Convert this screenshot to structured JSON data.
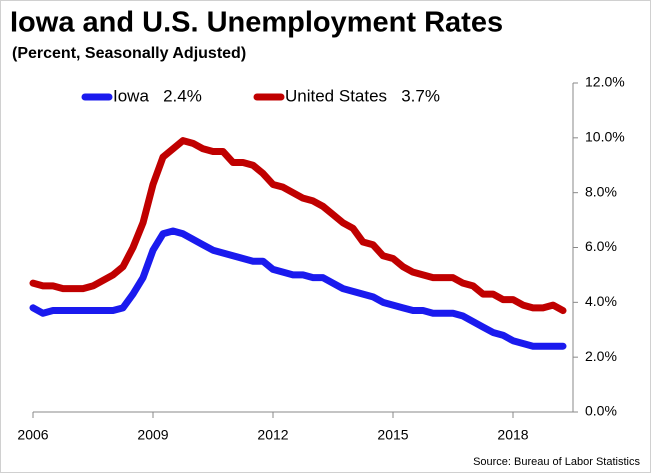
{
  "chart_data": {
    "type": "line",
    "title": "Iowa and U.S. Unemployment Rates",
    "subtitle": "(Percent, Seasonally Adjusted)",
    "source": "Source: Bureau of Labor Statistics",
    "x": [
      2006,
      2006.25,
      2006.5,
      2006.75,
      2007,
      2007.25,
      2007.5,
      2007.75,
      2008,
      2008.25,
      2008.5,
      2008.75,
      2009,
      2009.25,
      2009.5,
      2009.75,
      2010,
      2010.25,
      2010.5,
      2010.75,
      2011,
      2011.25,
      2011.5,
      2011.75,
      2012,
      2012.25,
      2012.5,
      2012.75,
      2013,
      2013.25,
      2013.5,
      2013.75,
      2014,
      2014.25,
      2014.5,
      2014.75,
      2015,
      2015.25,
      2015.5,
      2015.75,
      2016,
      2016.25,
      2016.5,
      2016.75,
      2017,
      2017.25,
      2017.5,
      2017.75,
      2018,
      2018.25,
      2018.5,
      2018.75,
      2019,
      2019.25
    ],
    "series": [
      {
        "name": "Iowa   2.4%",
        "color": "#1a1aee",
        "values": [
          3.8,
          3.6,
          3.7,
          3.7,
          3.7,
          3.7,
          3.7,
          3.7,
          3.7,
          3.8,
          4.3,
          4.9,
          5.9,
          6.5,
          6.6,
          6.5,
          6.3,
          6.1,
          5.9,
          5.8,
          5.7,
          5.6,
          5.5,
          5.5,
          5.2,
          5.1,
          5.0,
          5.0,
          4.9,
          4.9,
          4.7,
          4.5,
          4.4,
          4.3,
          4.2,
          4.0,
          3.9,
          3.8,
          3.7,
          3.7,
          3.6,
          3.6,
          3.6,
          3.5,
          3.3,
          3.1,
          2.9,
          2.8,
          2.6,
          2.5,
          2.4,
          2.4,
          2.4,
          2.4
        ]
      },
      {
        "name": "United States   3.7%",
        "color": "#c00000",
        "values": [
          4.7,
          4.6,
          4.6,
          4.5,
          4.5,
          4.5,
          4.6,
          4.8,
          5.0,
          5.3,
          6.0,
          6.9,
          8.3,
          9.3,
          9.6,
          9.9,
          9.8,
          9.6,
          9.5,
          9.5,
          9.1,
          9.1,
          9.0,
          8.7,
          8.3,
          8.2,
          8.0,
          7.8,
          7.7,
          7.5,
          7.2,
          6.9,
          6.7,
          6.2,
          6.1,
          5.7,
          5.6,
          5.3,
          5.1,
          5.0,
          4.9,
          4.9,
          4.9,
          4.7,
          4.6,
          4.3,
          4.3,
          4.1,
          4.1,
          3.9,
          3.8,
          3.8,
          3.9,
          3.7
        ]
      }
    ],
    "xlim": [
      2006,
      2019.5
    ],
    "xticks": [
      2006,
      2009,
      2012,
      2015,
      2018
    ],
    "ylim": [
      0,
      12
    ],
    "yticks": [
      {
        "value": 0,
        "label": "0.0%"
      },
      {
        "value": 2,
        "label": "2.0%"
      },
      {
        "value": 4,
        "label": "4.0%"
      },
      {
        "value": 6,
        "label": "6.0%"
      },
      {
        "value": 8,
        "label": "8.0%"
      },
      {
        "value": 10,
        "label": "10.0%"
      },
      {
        "value": 12,
        "label": "12.0%"
      }
    ],
    "grid": false,
    "legend": "top-left"
  }
}
